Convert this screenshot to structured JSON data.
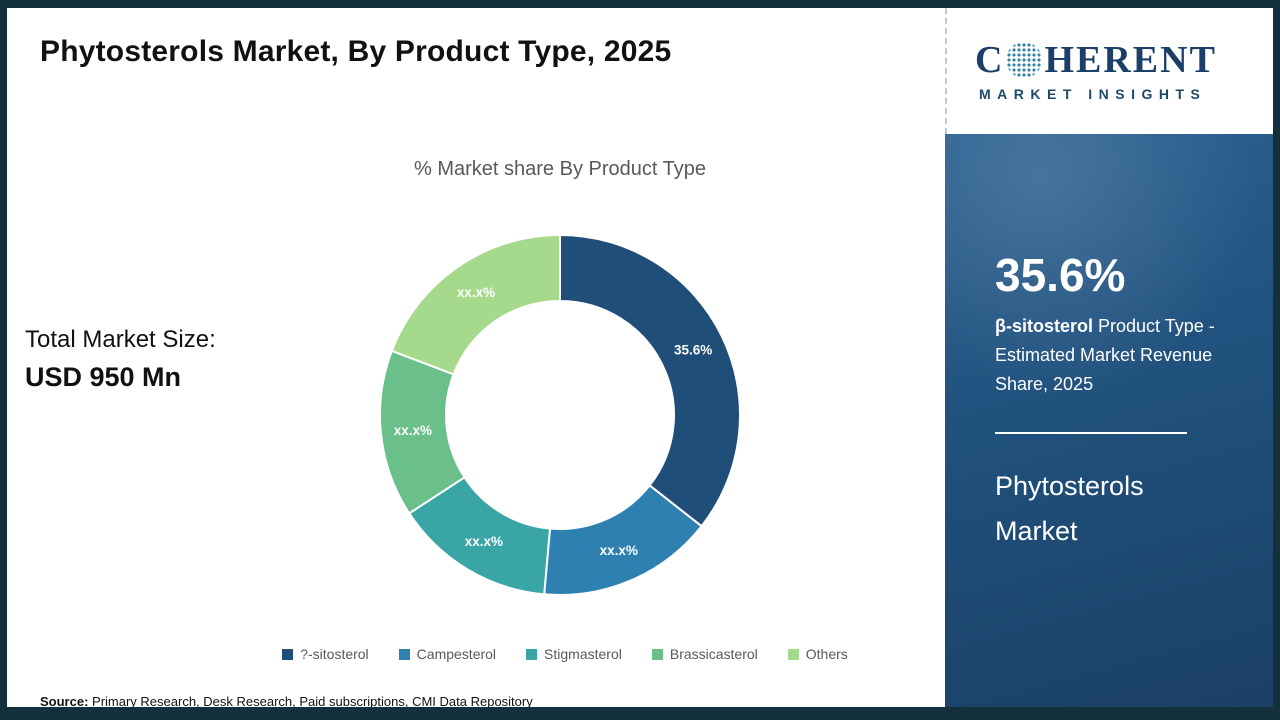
{
  "title": "Phytosterols Market, By Product Type, 2025",
  "logo": {
    "prefix": "C",
    "suffix": "HERENT",
    "subtitle": "MARKET INSIGHTS"
  },
  "total_market": {
    "label": "Total Market Size:",
    "value": "USD 950 Mn"
  },
  "chart_data": {
    "type": "pie",
    "donut": true,
    "title": "% Market share By Product Type",
    "categories": [
      "?-sitosterol",
      "Campesterol",
      "Stigmasterol",
      "Brassicasterol",
      "Others"
    ],
    "values": [
      35.6,
      15.8,
      14.4,
      15.0,
      19.2
    ],
    "display_labels": [
      "35.6%",
      "xx.x%",
      "xx.x%",
      "xx.x%",
      "xx.x%"
    ],
    "colors": [
      "#1f4e79",
      "#2e80b0",
      "#3aa5a5",
      "#6abf8b",
      "#a5d98c"
    ],
    "legend_position": "bottom",
    "start_angle_deg": 0
  },
  "sidebar": {
    "stat": "35.6%",
    "stat_bold": "β-sitosterol",
    "stat_desc": " Product Type - Estimated Market Revenue Share, 2025",
    "panel_title": "Phytosterols Market"
  },
  "source": {
    "label": "Source:",
    "text": " Primary Research, Desk Research, Paid subscriptions, CMI Data Repository"
  }
}
